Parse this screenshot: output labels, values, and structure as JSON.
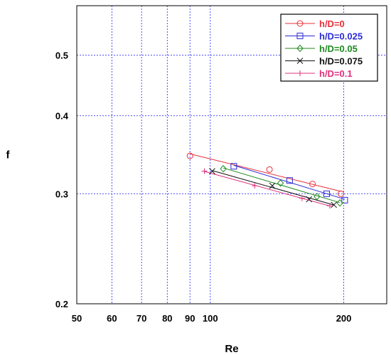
{
  "chart_data": {
    "type": "scatter",
    "title": "",
    "xlabel": "Re",
    "ylabel": "f",
    "x_scale": "log",
    "y_scale": "log",
    "xlim": [
      50,
      250
    ],
    "ylim": [
      0.2,
      0.6
    ],
    "grid": true,
    "legend_position": "top-right",
    "x_ticks": [
      50,
      60,
      70,
      80,
      90,
      100,
      200
    ],
    "x_tick_labels": [
      "50",
      "60",
      "70",
      "80",
      "90",
      "100",
      "200"
    ],
    "y_ticks": [
      0.2,
      0.3,
      0.4,
      0.5
    ],
    "y_tick_labels": [
      "0.2",
      "0.3",
      "0.4",
      "0.5"
    ],
    "series": [
      {
        "name": "h/D=0",
        "color": "#e8303a",
        "marker": "circle",
        "x": [
          90,
          136,
          170,
          197
        ],
        "y": [
          0.345,
          0.328,
          0.311,
          0.3
        ]
      },
      {
        "name": "h/D=0.025",
        "color": "#2b2bd6",
        "marker": "square",
        "x": [
          113,
          151,
          183,
          201
        ],
        "y": [
          0.332,
          0.315,
          0.3,
          0.293
        ]
      },
      {
        "name": "h/D=0.05",
        "color": "#1f8a1f",
        "marker": "diamond",
        "x": [
          107,
          144,
          174,
          196
        ],
        "y": [
          0.329,
          0.312,
          0.297,
          0.29
        ]
      },
      {
        "name": "h/D=0.075",
        "color": "#111111",
        "marker": "x",
        "x": [
          101,
          138,
          167,
          190
        ],
        "y": [
          0.326,
          0.309,
          0.294,
          0.288
        ]
      },
      {
        "name": "h/D=0.1",
        "color": "#e0307c",
        "marker": "plus",
        "x": [
          97,
          126,
          161,
          186
        ],
        "y": [
          0.326,
          0.309,
          0.295,
          0.287
        ]
      }
    ]
  }
}
